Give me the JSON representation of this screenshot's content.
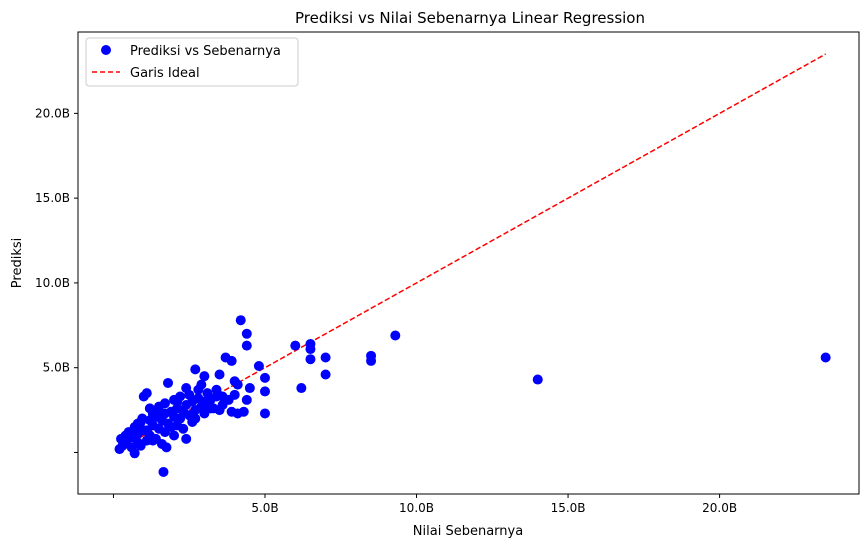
{
  "chart_data": {
    "type": "scatter",
    "title": "Prediksi vs Nilai Sebenarnya Linear Regression",
    "xlabel": "Nilai Sebenarnya",
    "ylabel": "Prediksi",
    "x_ticks": [
      {
        "value": 5000000000,
        "label": "5.0B"
      },
      {
        "value": 10000000000,
        "label": "10.0B"
      },
      {
        "value": 15000000000,
        "label": "15.0B"
      },
      {
        "value": 20000000000,
        "label": "20.0B"
      }
    ],
    "x_minor_ticks": [
      0
    ],
    "y_ticks": [
      {
        "value": 5000000000,
        "label": "5.0B"
      },
      {
        "value": 10000000000,
        "label": "10.0B"
      },
      {
        "value": 15000000000,
        "label": "15.0B"
      },
      {
        "value": 20000000000,
        "label": "20.0B"
      }
    ],
    "y_minor_ticks": [
      0
    ],
    "xlim": [
      -1170000000,
      24600000000
    ],
    "ylim": [
      -2450000000,
      24800000000
    ],
    "grid": false,
    "legend_position": "upper left",
    "colors": {
      "points": "#0000ff",
      "ideal_line": "#ff0000"
    },
    "series": [
      {
        "name": "Prediksi vs Sebenarnya",
        "kind": "scatter",
        "points": [
          [
            200000000,
            200000000
          ],
          [
            300000000,
            400000000
          ],
          [
            250000000,
            800000000
          ],
          [
            400000000,
            600000000
          ],
          [
            500000000,
            1200000000
          ],
          [
            600000000,
            900000000
          ],
          [
            700000000,
            1500000000
          ],
          [
            700000000,
            -50000000
          ],
          [
            800000000,
            1100000000
          ],
          [
            800000000,
            1700000000
          ],
          [
            900000000,
            400000000
          ],
          [
            950000000,
            2000000000
          ],
          [
            1000000000,
            1300000000
          ],
          [
            1000000000,
            3300000000
          ],
          [
            1100000000,
            3500000000
          ],
          [
            1100000000,
            700000000
          ],
          [
            1200000000,
            1900000000
          ],
          [
            1200000000,
            1000000000
          ],
          [
            1300000000,
            1600000000
          ],
          [
            1300000000,
            2300000000
          ],
          [
            1400000000,
            800000000
          ],
          [
            1400000000,
            2100000000
          ],
          [
            1500000000,
            1400000000
          ],
          [
            1500000000,
            2700000000
          ],
          [
            1600000000,
            1900000000
          ],
          [
            1600000000,
            500000000
          ],
          [
            1650000000,
            -1150000000
          ],
          [
            1700000000,
            1200000000
          ],
          [
            1700000000,
            2900000000
          ],
          [
            1750000000,
            300000000
          ],
          [
            1800000000,
            4100000000
          ],
          [
            1800000000,
            1700000000
          ],
          [
            1900000000,
            2400000000
          ],
          [
            2000000000,
            1000000000
          ],
          [
            2000000000,
            3100000000
          ],
          [
            2100000000,
            1600000000
          ],
          [
            2100000000,
            2600000000
          ],
          [
            2200000000,
            2000000000
          ],
          [
            2200000000,
            3300000000
          ],
          [
            2300000000,
            1400000000
          ],
          [
            2400000000,
            2800000000
          ],
          [
            2400000000,
            800000000
          ],
          [
            2400000000,
            3800000000
          ],
          [
            2500000000,
            2200000000
          ],
          [
            2600000000,
            3000000000
          ],
          [
            2600000000,
            1800000000
          ],
          [
            2700000000,
            4900000000
          ],
          [
            2700000000,
            2500000000
          ],
          [
            2800000000,
            3200000000
          ],
          [
            2900000000,
            2700000000
          ],
          [
            2900000000,
            4000000000
          ],
          [
            3000000000,
            2300000000
          ],
          [
            3000000000,
            4500000000
          ],
          [
            3100000000,
            3500000000
          ],
          [
            3100000000,
            2900000000
          ],
          [
            3200000000,
            3100000000
          ],
          [
            3300000000,
            2600000000
          ],
          [
            3400000000,
            3700000000
          ],
          [
            3500000000,
            4600000000
          ],
          [
            3500000000,
            2500000000
          ],
          [
            3600000000,
            3300000000
          ],
          [
            3700000000,
            5600000000
          ],
          [
            3800000000,
            3100000000
          ],
          [
            3900000000,
            5400000000
          ],
          [
            3900000000,
            2400000000
          ],
          [
            4000000000,
            4200000000
          ],
          [
            4000000000,
            3400000000
          ],
          [
            4100000000,
            4000000000
          ],
          [
            4100000000,
            2300000000
          ],
          [
            4200000000,
            7800000000
          ],
          [
            4300000000,
            2400000000
          ],
          [
            4400000000,
            7000000000
          ],
          [
            4400000000,
            6300000000
          ],
          [
            4400000000,
            3100000000
          ],
          [
            4500000000,
            3800000000
          ],
          [
            4800000000,
            5100000000
          ],
          [
            5000000000,
            4400000000
          ],
          [
            5000000000,
            3600000000
          ],
          [
            5000000000,
            2300000000
          ],
          [
            6000000000,
            6300000000
          ],
          [
            6200000000,
            3800000000
          ],
          [
            6500000000,
            6100000000
          ],
          [
            6500000000,
            5500000000
          ],
          [
            6500000000,
            6400000000
          ],
          [
            7000000000,
            5600000000
          ],
          [
            7000000000,
            4600000000
          ],
          [
            8500000000,
            5700000000
          ],
          [
            8500000000,
            5400000000
          ],
          [
            9300000000,
            6900000000
          ],
          [
            14000000000,
            4300000000
          ],
          [
            23500000000,
            5600000000
          ],
          [
            400000000,
            1000000000
          ],
          [
            600000000,
            300000000
          ],
          [
            900000000,
            1800000000
          ],
          [
            1100000000,
            1300000000
          ],
          [
            1300000000,
            700000000
          ],
          [
            1500000000,
            2200000000
          ],
          [
            1700000000,
            2300000000
          ],
          [
            1900000000,
            1500000000
          ],
          [
            2100000000,
            3000000000
          ],
          [
            2300000000,
            2400000000
          ],
          [
            2500000000,
            3400000000
          ],
          [
            2700000000,
            2000000000
          ],
          [
            2800000000,
            3700000000
          ],
          [
            3000000000,
            3000000000
          ],
          [
            3200000000,
            2600000000
          ],
          [
            3400000000,
            3300000000
          ],
          [
            3600000000,
            2800000000
          ],
          [
            2000000000,
            2100000000
          ],
          [
            1200000000,
            2600000000
          ],
          [
            800000000,
            600000000
          ]
        ]
      },
      {
        "name": "Garis Ideal",
        "kind": "line",
        "style": "dashed",
        "points": [
          [
            200000000,
            200000000
          ],
          [
            23500000000,
            23500000000
          ]
        ]
      }
    ]
  }
}
